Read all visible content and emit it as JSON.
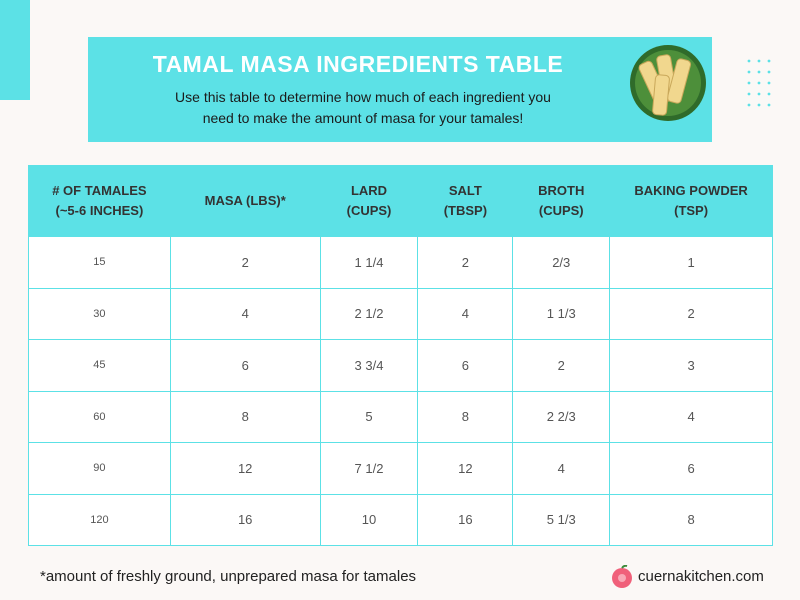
{
  "header": {
    "title": "TAMAL MASA INGREDIENTS TABLE",
    "subtitle": "Use this table to determine how much of each ingredient you need to make the amount of masa for your tamales!"
  },
  "table": {
    "columns": [
      [
        "# OF TAMALES",
        "(~5-6 INCHES)"
      ],
      [
        "MASA (LBS)*"
      ],
      [
        "LARD",
        "(CUPS)"
      ],
      [
        "SALT",
        "(TBSP)"
      ],
      [
        "BROTH",
        "(CUPS)"
      ],
      [
        "BAKING POWDER",
        "(TSP)"
      ]
    ],
    "rows": [
      [
        "15",
        "2",
        "1 1/4",
        "2",
        "2/3",
        "1"
      ],
      [
        "30",
        "4",
        "2 1/2",
        "4",
        "1 1/3",
        "2"
      ],
      [
        "45",
        "6",
        "3 3/4",
        "6",
        "2",
        "3"
      ],
      [
        "60",
        "8",
        "5",
        "8",
        "2 2/3",
        "4"
      ],
      [
        "90",
        "12",
        "7 1/2",
        "12",
        "4",
        "6"
      ],
      [
        "120",
        "16",
        "10",
        "16",
        "5 1/3",
        "8"
      ]
    ]
  },
  "footer": {
    "note": "*amount of freshly ground, unprepared masa for tamales",
    "site": "cuernakitchen.com"
  }
}
